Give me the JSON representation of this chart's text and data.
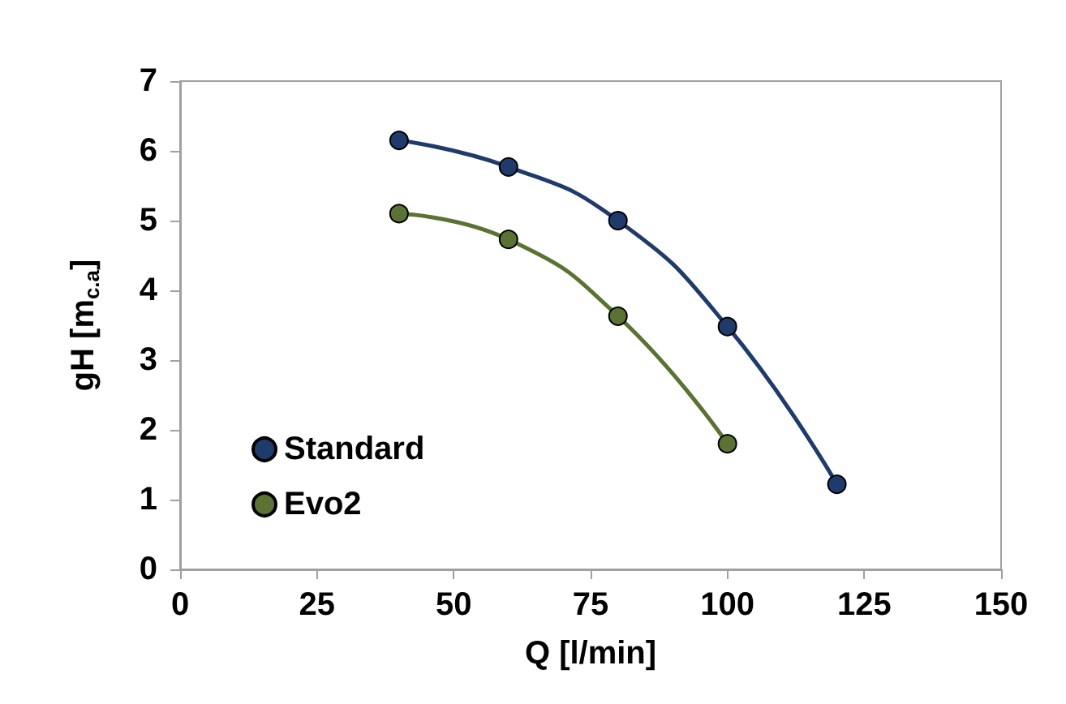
{
  "chart_data": {
    "type": "line",
    "xlabel": "Q [l/min]",
    "ylabel": "gH [m$_{c.a}$]",
    "x": [
      40,
      60,
      80,
      100,
      120
    ],
    "series": [
      {
        "name": "Standard",
        "color": "#1f3b6b",
        "values": [
          6.15,
          5.77,
          5.0,
          3.48,
          1.22
        ]
      },
      {
        "name": "Evo2",
        "color": "#5a7233",
        "x": [
          40,
          60,
          80,
          100
        ],
        "values": [
          5.1,
          4.73,
          3.63,
          1.8
        ]
      }
    ],
    "xlim": [
      0,
      150
    ],
    "xticks": [
      0,
      25,
      50,
      75,
      100,
      125,
      150
    ],
    "ylim": [
      0,
      7
    ],
    "yticks": [
      0,
      1,
      2,
      3,
      4,
      5,
      6,
      7
    ],
    "grid": false,
    "legend": "bottom left",
    "marker": "circle",
    "line_style": "solid"
  }
}
